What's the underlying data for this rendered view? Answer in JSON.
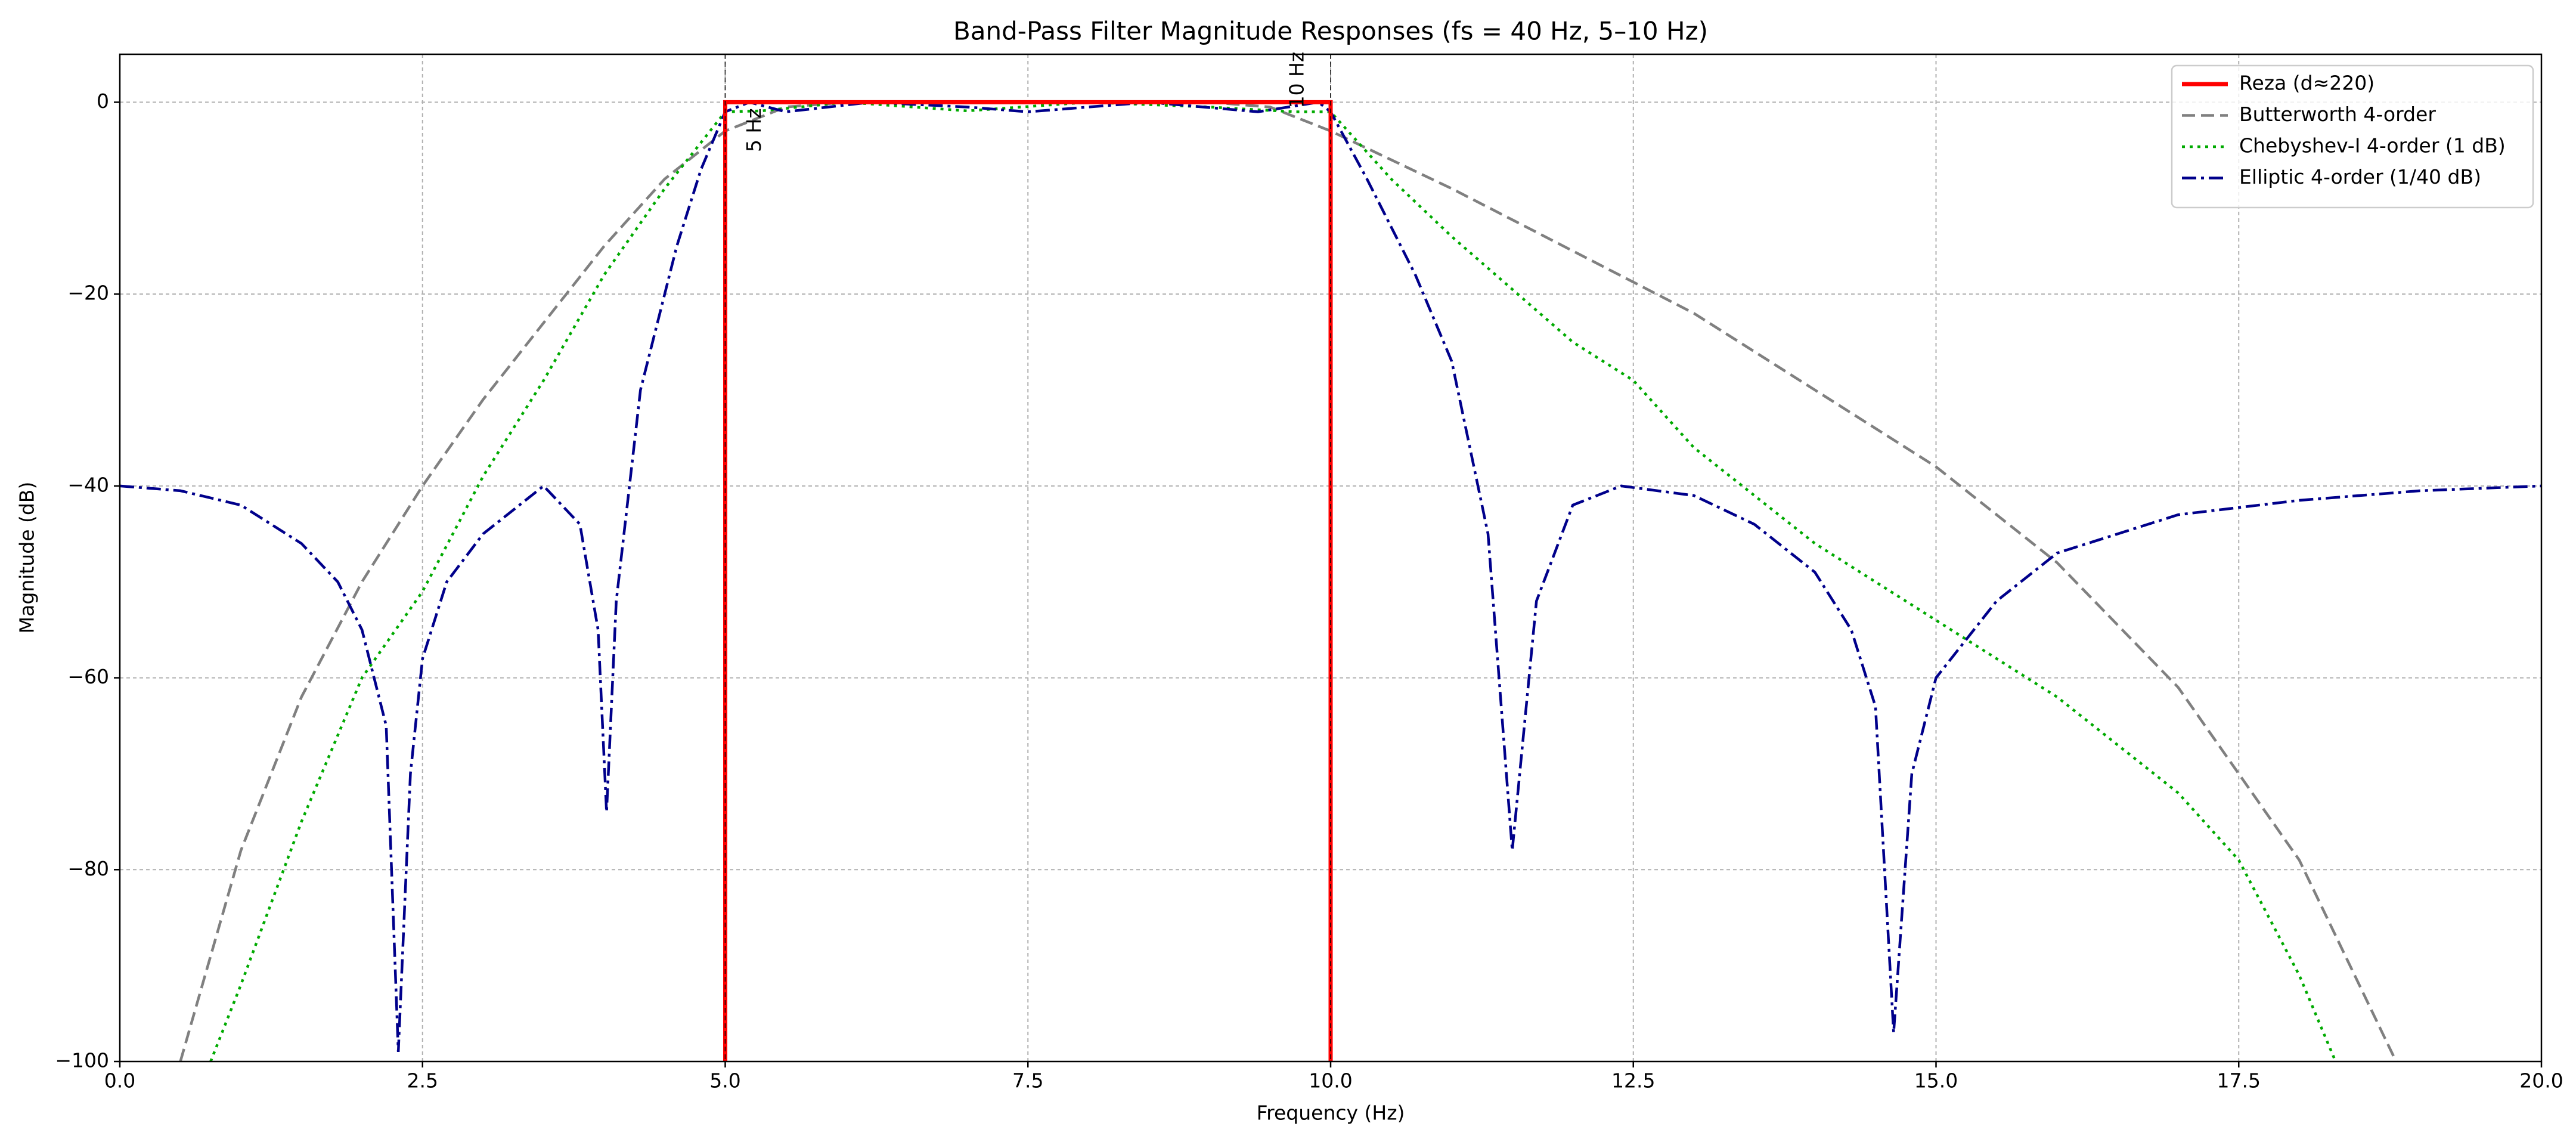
{
  "chart_data": {
    "type": "line",
    "title": "Band-Pass Filter Magnitude Responses (fs = 40 Hz, 5–10 Hz)",
    "xlabel": "Frequency (Hz)",
    "ylabel": "Magnitude (dB)",
    "xlim": [
      0,
      20
    ],
    "ylim": [
      -100,
      5
    ],
    "xticks": [
      {
        "value": 0,
        "label": "0.0"
      },
      2.5,
      {
        "value": 5,
        "label": "5.0"
      },
      7.5,
      {
        "value": 10,
        "label": "10.0"
      },
      12.5,
      {
        "value": 15,
        "label": "15.0"
      },
      17.5,
      {
        "value": 20,
        "label": "20.0"
      }
    ],
    "yticks": [
      {
        "value": -100,
        "label": "−100"
      },
      {
        "value": -80,
        "label": "−80"
      },
      {
        "value": -60,
        "label": "−60"
      },
      {
        "value": -40,
        "label": "−40"
      },
      {
        "value": -20,
        "label": "−20"
      },
      0
    ],
    "grid": true,
    "legend": "upper right",
    "vlines": [
      5,
      10
    ],
    "annotations": [
      "5 Hz",
      "10 Hz"
    ],
    "series": [
      {
        "name": "Reza (d≈220)",
        "color": "#ff0000",
        "style": "solid",
        "x": [
          5,
          5,
          10,
          10
        ],
        "values": [
          -100,
          0,
          0,
          -100
        ]
      },
      {
        "name": "Butterworth 4-order",
        "color": "#808080",
        "style": "dashed",
        "x": [
          0.5,
          1,
          1.5,
          2,
          2.5,
          3,
          3.5,
          4,
          4.5,
          5,
          5.5,
          6,
          7,
          8,
          9,
          9.5,
          10,
          10.5,
          11,
          12,
          13,
          14,
          15,
          16,
          17,
          18,
          18.8
        ],
        "values": [
          -100,
          -78,
          -62,
          -50,
          -40,
          -31,
          -23,
          -15,
          -8,
          -3,
          -0.5,
          0,
          0,
          0,
          0,
          -0.5,
          -3,
          -6,
          -9,
          -15.5,
          -22,
          -30,
          -38,
          -48,
          -61,
          -79,
          -100
        ]
      },
      {
        "name": "Chebyshev-I 4-order (1 dB)",
        "color": "#00aa00",
        "style": "dotted",
        "x": [
          0.75,
          1,
          1.5,
          2,
          2.5,
          3,
          3.5,
          4,
          4.5,
          5,
          5.3,
          6,
          7,
          8,
          9,
          9.7,
          10,
          10.5,
          11,
          12,
          12.5,
          13,
          14,
          15,
          16,
          17,
          17.5,
          18,
          18.3
        ],
        "values": [
          -100,
          -92,
          -75,
          -60,
          -51,
          -39,
          -29,
          -18,
          -9,
          -1,
          -0.9,
          0,
          -0.9,
          0,
          -0.5,
          -1,
          -1,
          -8,
          -14,
          -25,
          -29,
          -36,
          -46,
          -54,
          -62,
          -72,
          -79,
          -91,
          -100
        ]
      },
      {
        "name": "Elliptic 4-order (1/40 dB)",
        "color": "#00008b",
        "style": "dashdot",
        "x": [
          0,
          0.5,
          1,
          1.5,
          1.8,
          2,
          2.2,
          2.3,
          2.4,
          2.5,
          2.7,
          3,
          3.5,
          3.8,
          3.95,
          4.02,
          4.1,
          4.3,
          4.6,
          4.8,
          5,
          5.2,
          5.5,
          6.2,
          7,
          7.5,
          8.5,
          9.4,
          9.9,
          10,
          10.3,
          10.7,
          11,
          11.3,
          11.5,
          11.7,
          12,
          12.4,
          13,
          13.5,
          14,
          14.3,
          14.5,
          14.65,
          14.8,
          15,
          15.5,
          16,
          17,
          18,
          19,
          20
        ],
        "values": [
          -40,
          -40.5,
          -42,
          -46,
          -50,
          -55,
          -65,
          -99,
          -70,
          -58,
          -50,
          -45,
          -40,
          -44,
          -55,
          -74,
          -52,
          -30,
          -15,
          -7,
          -1,
          0,
          -1,
          0,
          -0.5,
          -1,
          0,
          -1,
          0,
          -1,
          -8,
          -18,
          -27,
          -45,
          -78,
          -52,
          -42,
          -40,
          -41,
          -44,
          -49,
          -55,
          -63,
          -97,
          -70,
          -60,
          -52,
          -47,
          -43,
          -41.5,
          -40.5,
          -40
        ]
      }
    ]
  }
}
